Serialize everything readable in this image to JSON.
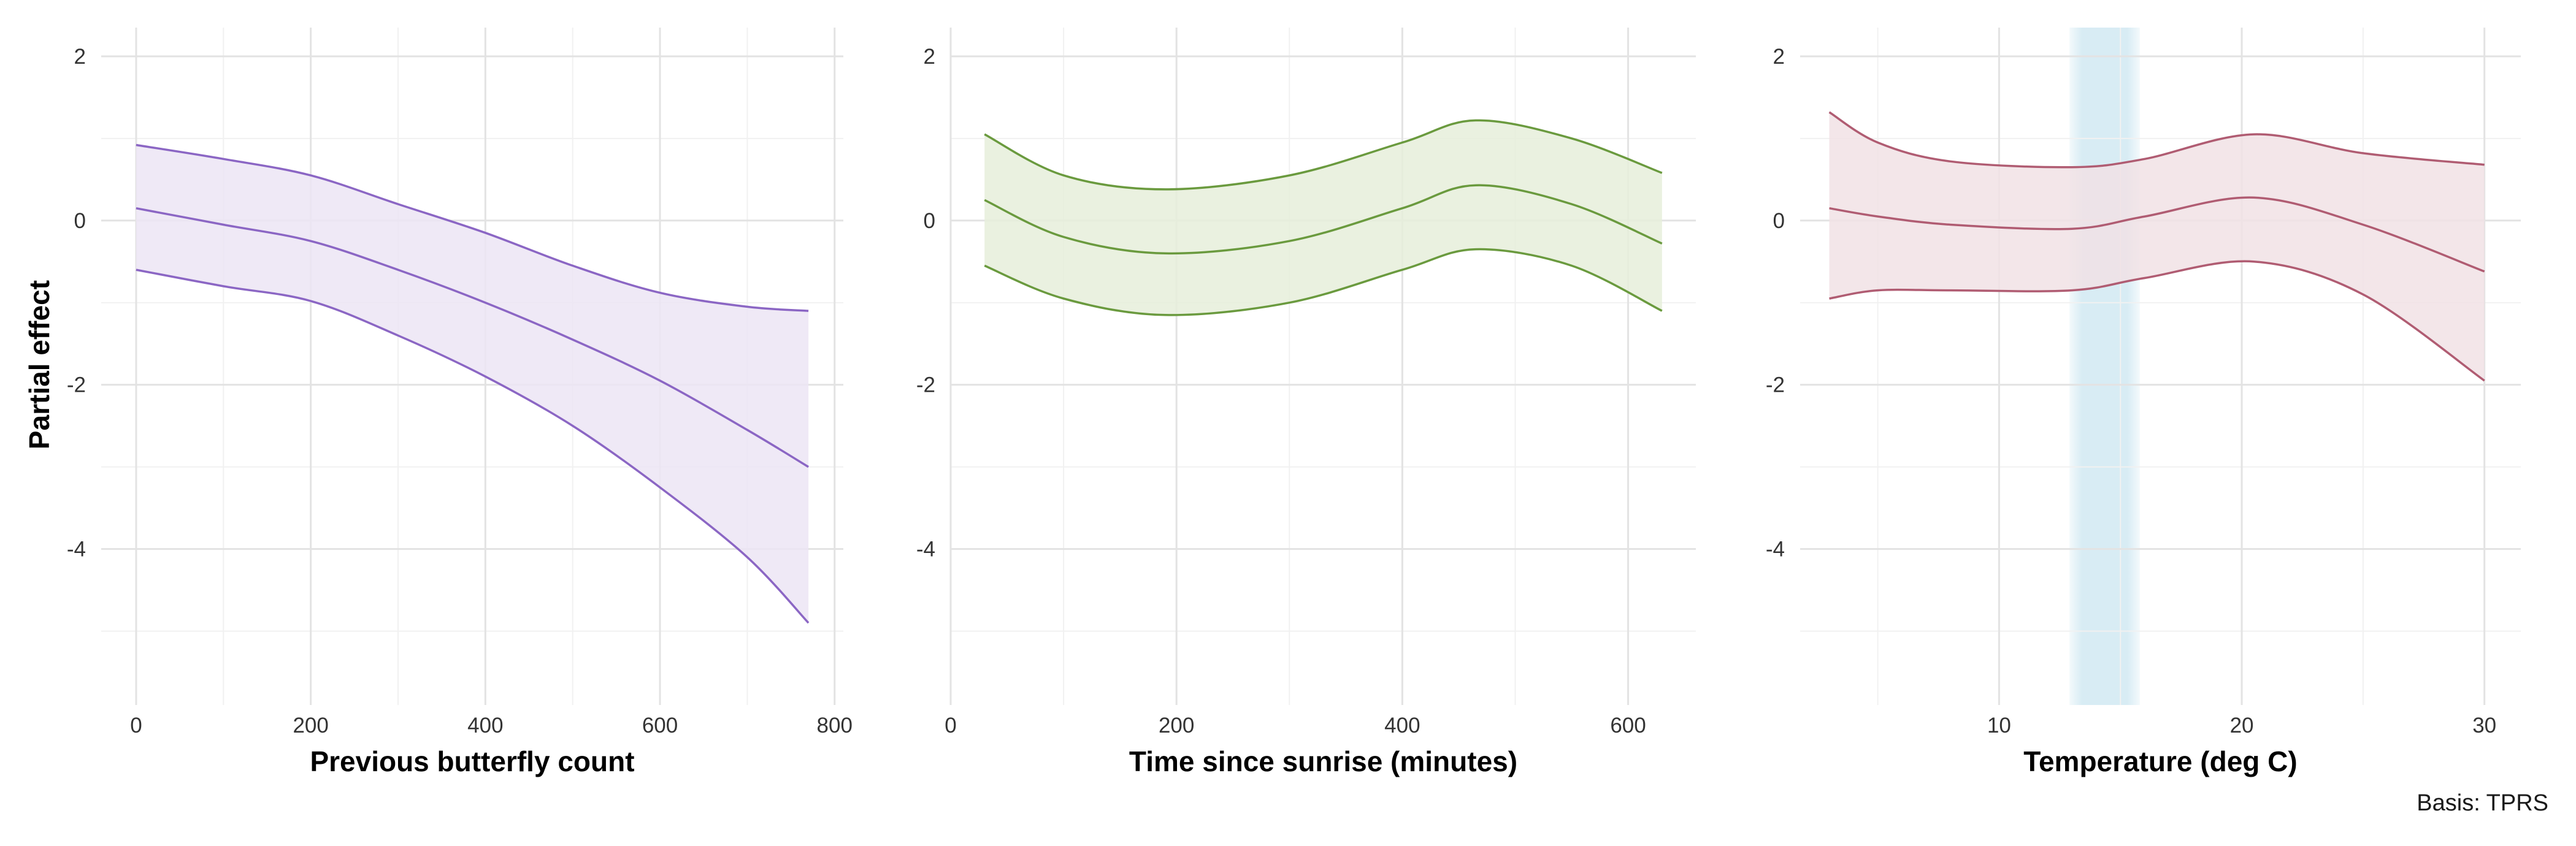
{
  "chart_data": [
    {
      "type": "line",
      "xlabel": "Previous butterfly count",
      "ylabel": "Partial effect",
      "xlim": [
        -40,
        810
      ],
      "ylim": [
        -5.9,
        2.35
      ],
      "xticks": [
        0,
        200,
        400,
        600,
        800
      ],
      "xtick_labels": [
        "0",
        "200",
        "400",
        "600",
        "800"
      ],
      "yticks": [
        2,
        0,
        -2,
        -4
      ],
      "ytick_labels": [
        "2",
        "0",
        "-2",
        "-4"
      ],
      "line_color": "#8b66c4",
      "band_color": "#ece5f5",
      "grid": true,
      "x": [
        0,
        100,
        200,
        300,
        400,
        500,
        600,
        700,
        770
      ],
      "fit": [
        0.15,
        -0.05,
        -0.25,
        -0.6,
        -1.0,
        -1.45,
        -1.95,
        -2.55,
        -3.0
      ],
      "lower": [
        -0.6,
        -0.8,
        -0.98,
        -1.4,
        -1.9,
        -2.5,
        -3.25,
        -4.1,
        -4.9
      ],
      "upper": [
        0.92,
        0.75,
        0.55,
        0.2,
        -0.15,
        -0.55,
        -0.88,
        -1.05,
        -1.1
      ]
    },
    {
      "type": "line",
      "xlabel": "Time since sunrise (minutes)",
      "ylabel": "",
      "xlim": [
        0,
        660
      ],
      "ylim": [
        -5.9,
        2.35
      ],
      "xticks": [
        0,
        200,
        400,
        600
      ],
      "xtick_labels": [
        "0",
        "200",
        "400",
        "600"
      ],
      "yticks": [
        2,
        0,
        -2,
        -4
      ],
      "ytick_labels": [
        "2",
        "0",
        "-2",
        "-4"
      ],
      "line_color": "#6a9a3e",
      "band_color": "#e6efda",
      "grid": true,
      "x": [
        30,
        100,
        190,
        300,
        400,
        465,
        550,
        630
      ],
      "fit": [
        0.25,
        -0.2,
        -0.4,
        -0.25,
        0.15,
        0.43,
        0.2,
        -0.28
      ],
      "lower": [
        -0.55,
        -0.95,
        -1.15,
        -1.0,
        -0.6,
        -0.35,
        -0.55,
        -1.1
      ],
      "upper": [
        1.05,
        0.55,
        0.38,
        0.55,
        0.95,
        1.22,
        1.0,
        0.58
      ]
    },
    {
      "type": "line",
      "xlabel": "Temperature (deg C)",
      "ylabel": "",
      "xlim": [
        1.8,
        31.5
      ],
      "ylim": [
        -5.9,
        2.35
      ],
      "xticks": [
        10,
        20,
        30
      ],
      "xtick_labels": [
        "10",
        "20",
        "30"
      ],
      "yticks": [
        2,
        0,
        -2,
        -4
      ],
      "ytick_labels": [
        "2",
        "0",
        "-2",
        "-4"
      ],
      "line_color": "#b05c72",
      "band_color": "#f1e2e5",
      "grid": true,
      "highlight_x": [
        12.9,
        15.8
      ],
      "highlight_color": "#d8ecf4",
      "x": [
        3,
        5,
        8,
        13,
        16,
        20.5,
        25,
        30
      ],
      "fit": [
        0.15,
        0.05,
        -0.05,
        -0.1,
        0.05,
        0.28,
        -0.05,
        -0.62
      ],
      "lower": [
        -0.95,
        -0.85,
        -0.85,
        -0.85,
        -0.7,
        -0.5,
        -0.9,
        -1.95
      ],
      "upper": [
        1.32,
        0.95,
        0.72,
        0.65,
        0.75,
        1.05,
        0.82,
        0.68
      ]
    }
  ],
  "caption": "Basis: TPRS"
}
